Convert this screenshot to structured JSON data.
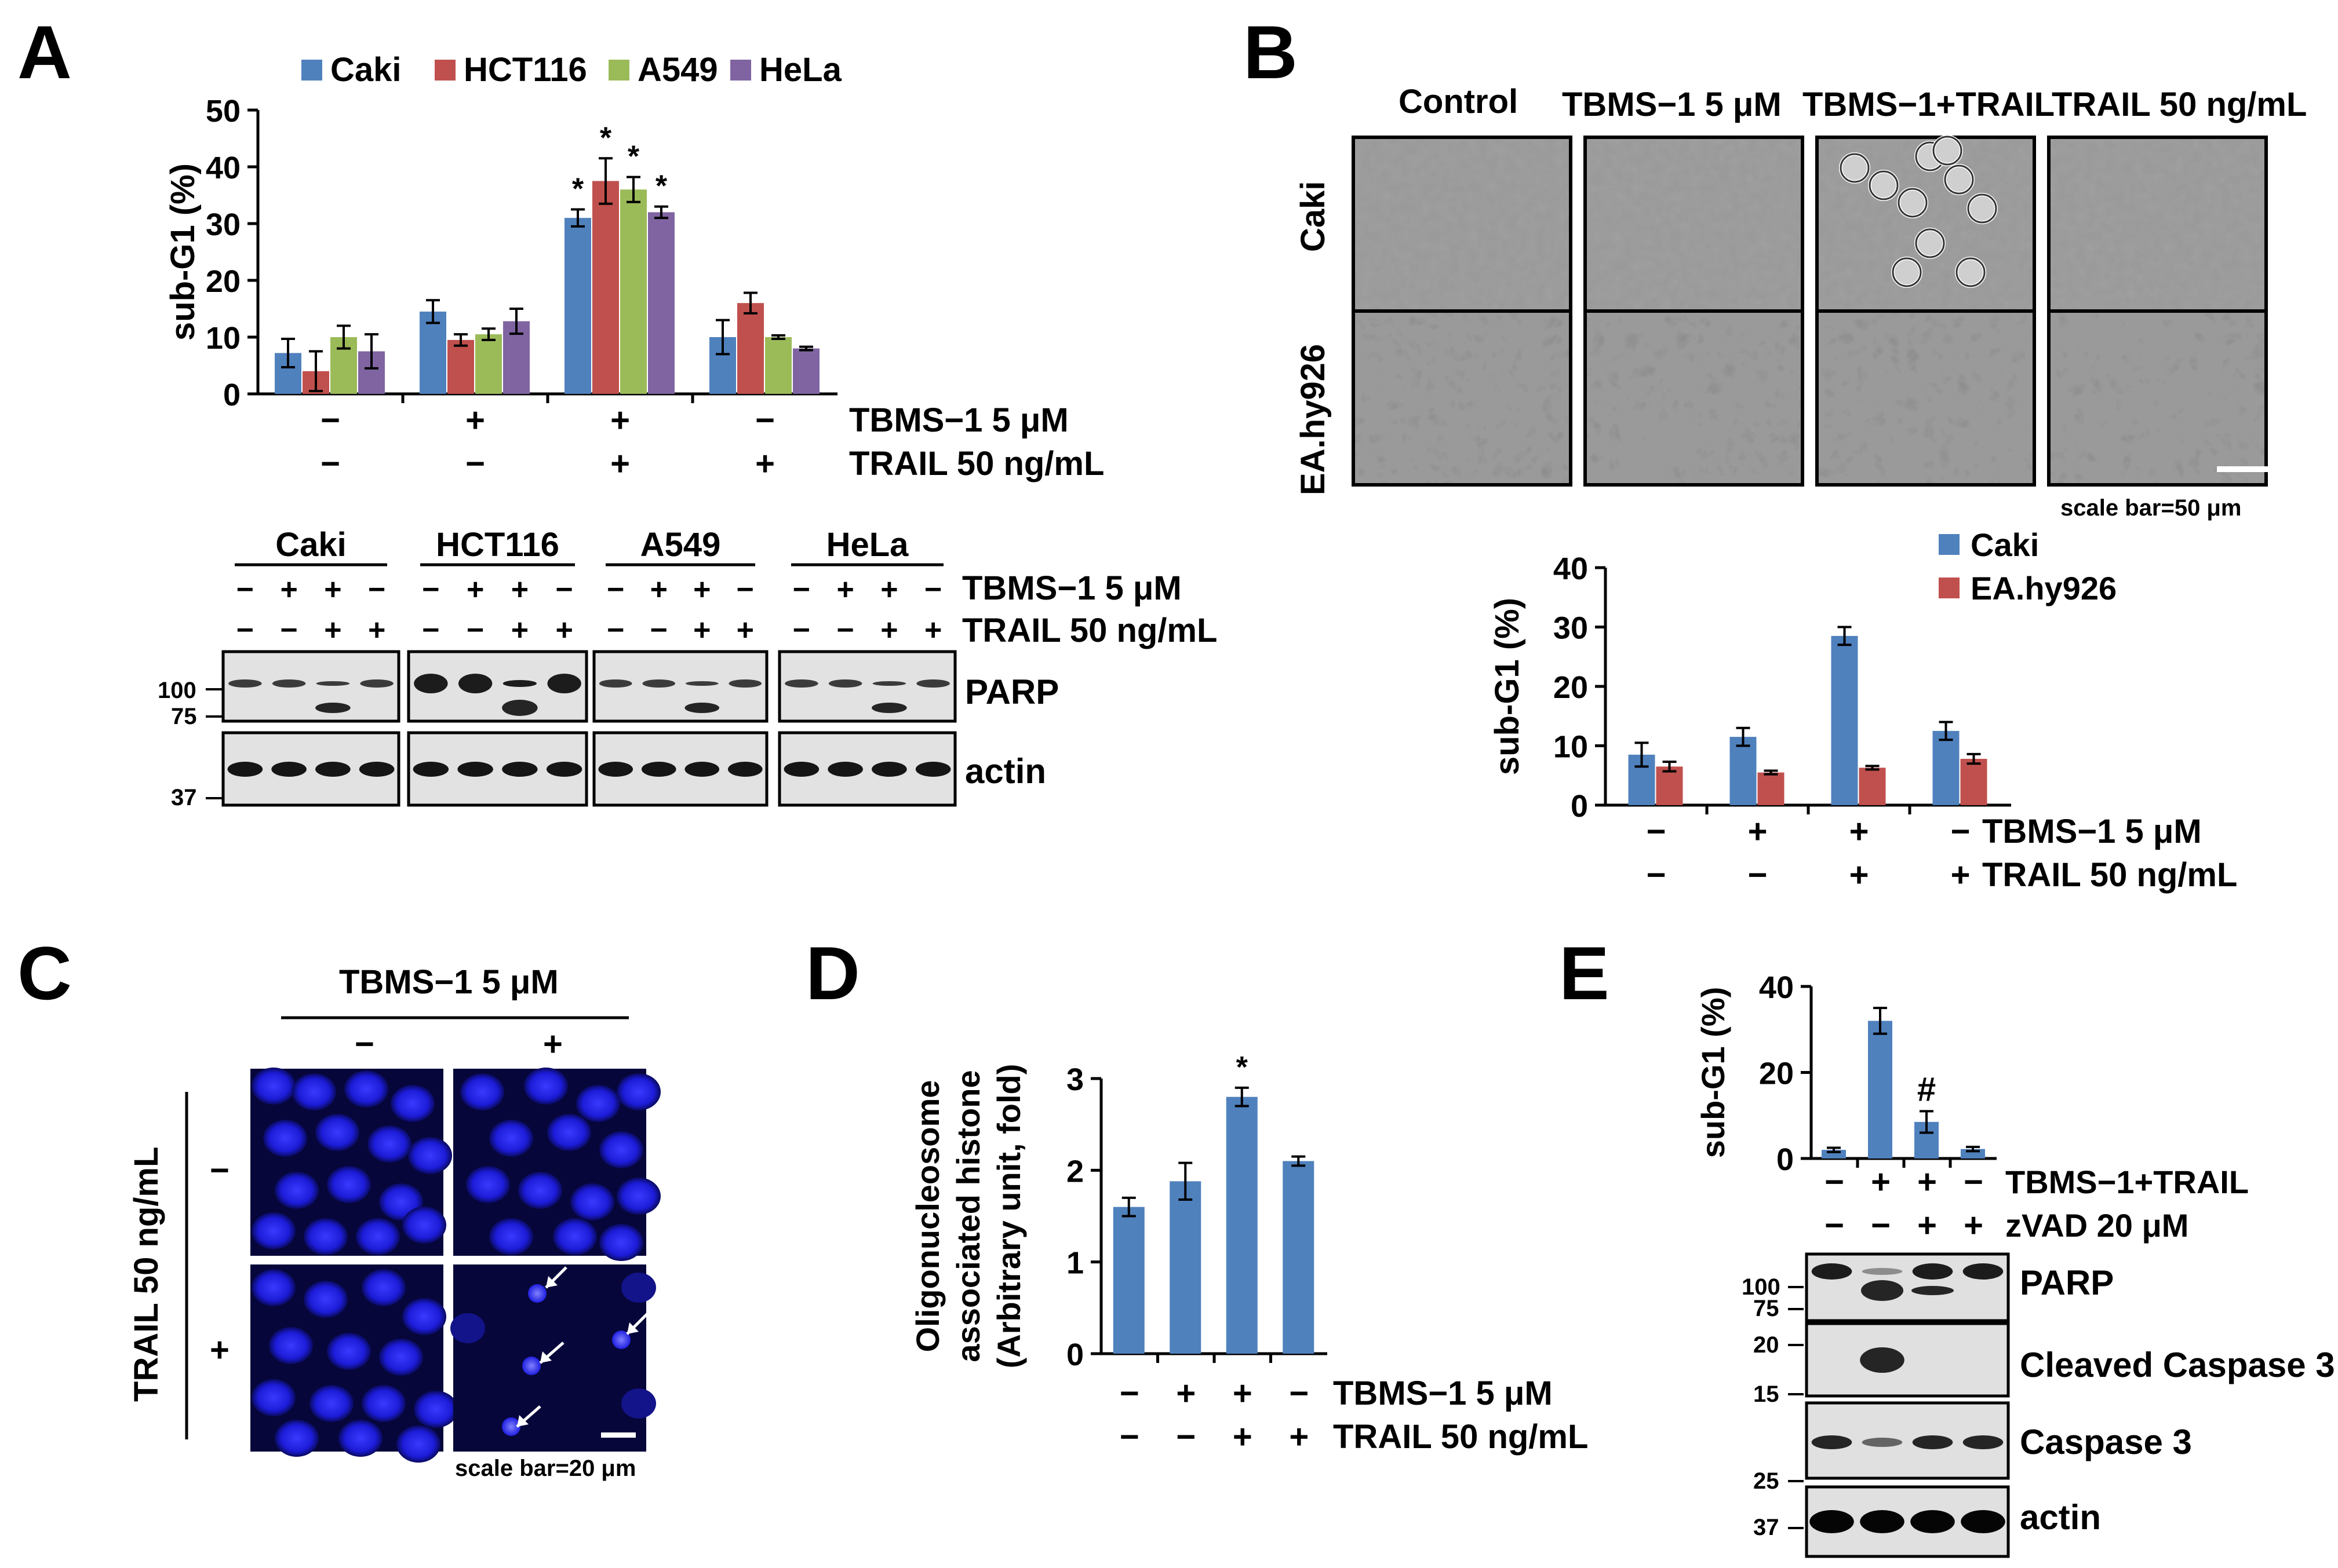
{
  "panels": {
    "A": {
      "letter": "A",
      "chart": {
        "type": "bar",
        "categories": [
          "1",
          "2",
          "3",
          "4"
        ],
        "series": [
          {
            "name": "Caki",
            "color": "#4f81bd",
            "values": [
              7.2,
              14.5,
              31,
              10
            ],
            "errors": [
              2.5,
              2,
              1.5,
              3
            ]
          },
          {
            "name": "HCT116",
            "color": "#c0504d",
            "values": [
              4,
              9.5,
              37.5,
              16
            ],
            "errors": [
              3.5,
              1,
              4,
              1.8
            ]
          },
          {
            "name": "A549",
            "color": "#9bbb59",
            "values": [
              10,
              10.5,
              36,
              10
            ],
            "errors": [
              2,
              1,
              2.2,
              0.3
            ]
          },
          {
            "name": "HeLa",
            "color": "#8064a2",
            "values": [
              7.5,
              12.8,
              32,
              8
            ],
            "errors": [
              3,
              2.2,
              1,
              0.3
            ]
          }
        ],
        "significance": [
          "*",
          "*",
          "*",
          "*"
        ],
        "ylabel": "sub-G1 (%)",
        "yticks": [
          "0",
          "10",
          "20",
          "30",
          "40",
          "50"
        ],
        "ylim": [
          0,
          50
        ],
        "treatments": [
          {
            "label": "TBMS−1 5 μM",
            "marks": [
              "−",
              "+",
              "+",
              "−"
            ]
          },
          {
            "label": "TRAIL 50 ng/mL",
            "marks": [
              "−",
              "−",
              "+",
              "+"
            ]
          }
        ]
      },
      "blot": {
        "cell_lines": [
          "Caki",
          "HCT116",
          "A549",
          "HeLa"
        ],
        "tbms_label": "TBMS−1 5 μM",
        "trail_label": "TRAIL 50 ng/mL",
        "tbms_marks": [
          "−",
          "+",
          "+",
          "−"
        ],
        "trail_marks": [
          "−",
          "−",
          "+",
          "+"
        ],
        "bands": [
          "PARP",
          "actin"
        ],
        "markers": [
          "100",
          "75",
          "37"
        ]
      }
    },
    "B": {
      "letter": "B",
      "columns": [
        "Control",
        "TBMS−1 5 μM",
        "TBMS−1+TRAIL",
        "TRAIL 50 ng/mL"
      ],
      "rows": [
        "Caki",
        "EA.hy926"
      ],
      "scale_bar": "scale bar=50  μm",
      "chart": {
        "type": "bar",
        "categories": [
          "1",
          "2",
          "3",
          "4"
        ],
        "series": [
          {
            "name": "Caki",
            "color": "#4f81bd",
            "values": [
              8.5,
              11.5,
              28.5,
              12.5
            ],
            "errors": [
              2,
              1.5,
              1.5,
              1.5
            ]
          },
          {
            "name": "EA.hy926",
            "color": "#c0504d",
            "values": [
              6.5,
              5.5,
              6.3,
              7.8
            ],
            "errors": [
              0.8,
              0.3,
              0.3,
              0.8
            ]
          }
        ],
        "ylabel": "sub-G1 (%)",
        "yticks": [
          "0",
          "10",
          "20",
          "30",
          "40"
        ],
        "ylim": [
          0,
          40
        ],
        "treatments": [
          {
            "label": "TBMS−1 5 μM",
            "marks": [
              "−",
              "+",
              "+",
              "−"
            ]
          },
          {
            "label": "TRAIL 50 ng/mL",
            "marks": [
              "−",
              "−",
              "+",
              "+"
            ]
          }
        ]
      }
    },
    "C": {
      "letter": "C",
      "top_label": "TBMS−1 5 μM",
      "col_marks": [
        "−",
        "+"
      ],
      "side_label": "TRAIL 50 ng/mL",
      "row_marks": [
        "−",
        "+"
      ],
      "scale_bar": "scale bar=20  μm"
    },
    "D": {
      "letter": "D",
      "chart": {
        "type": "bar",
        "categories": [
          "1",
          "2",
          "3",
          "4"
        ],
        "series": [
          {
            "name": "",
            "color": "#4f81bd",
            "values": [
              1.6,
              1.88,
              2.8,
              2.1
            ],
            "errors": [
              0.1,
              0.2,
              0.1,
              0.05
            ]
          }
        ],
        "significance": [
          "*"
        ],
        "ylabel_lines": [
          "Oligonucleosome",
          "associated histone",
          "(Arbitrary unit, fold)"
        ],
        "yticks": [
          "0",
          "1",
          "2",
          "3"
        ],
        "ylim": [
          0,
          3
        ],
        "treatments": [
          {
            "label": "TBMS−1 5 μM",
            "marks": [
              "−",
              "+",
              "+",
              "−"
            ]
          },
          {
            "label": "TRAIL 50 ng/mL",
            "marks": [
              "−",
              "−",
              "+",
              "+"
            ]
          }
        ]
      }
    },
    "E": {
      "letter": "E",
      "chart": {
        "type": "bar",
        "categories": [
          "1",
          "2",
          "3",
          "4"
        ],
        "series": [
          {
            "name": "",
            "color": "#4f81bd",
            "values": [
              2,
              32,
              8.5,
              2.2
            ],
            "errors": [
              0.5,
              3,
              2.5,
              0.5
            ]
          }
        ],
        "significance": [
          "#"
        ],
        "ylabel": "sub-G1 (%)",
        "yticks": [
          "0",
          "20",
          "40"
        ],
        "ylim": [
          0,
          40
        ],
        "treatments": [
          {
            "label": "TBMS−1+TRAIL",
            "marks": [
              "−",
              "+",
              "+",
              "−"
            ]
          },
          {
            "label": "zVAD 20 μM",
            "marks": [
              "−",
              "−",
              "+",
              "+"
            ]
          }
        ]
      },
      "blot": {
        "bands": [
          "PARP",
          "Cleaved Caspase 3",
          "Caspase 3",
          "actin"
        ],
        "markers": [
          "100",
          "75",
          "20",
          "15",
          "25",
          "37"
        ]
      }
    }
  }
}
